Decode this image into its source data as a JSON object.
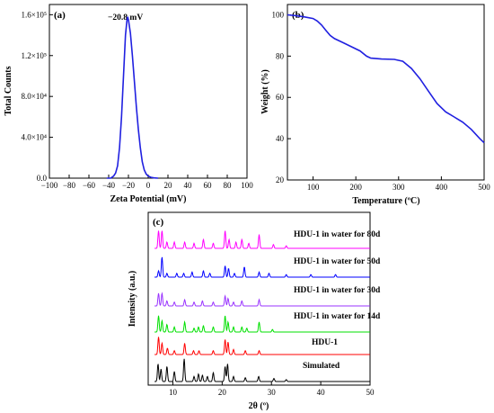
{
  "chart_data": [
    {
      "type": "line",
      "panel_label": "(a)",
      "xlabel": "Zeta Potential (mV)",
      "ylabel": "Total Counts",
      "xlim": [
        -100,
        100
      ],
      "ylim": [
        0,
        170000
      ],
      "xticks": [
        -100,
        -80,
        -60,
        -40,
        -20,
        0,
        20,
        40,
        60,
        80,
        100
      ],
      "yticks": [
        0,
        40000,
        80000,
        120000,
        160000
      ],
      "ytick_labels": [
        "0.0",
        "4.0×10⁴",
        "8.0×10⁴",
        "1.2×10⁵",
        "1.6×10⁵"
      ],
      "annotation": "−20.8 mV",
      "color": "#2020e0",
      "series": [
        {
          "x": [
            -42,
            -38,
            -35,
            -33,
            -31,
            -29,
            -27,
            -25,
            -23,
            -21.5,
            -20.8,
            -20,
            -18,
            -16,
            -14,
            -12,
            -10,
            -8,
            -6,
            -4,
            -2,
            0,
            3,
            6,
            10
          ],
          "y": [
            0,
            0,
            2000,
            5000,
            12000,
            30000,
            60000,
            100000,
            140000,
            155000,
            158000,
            155000,
            142000,
            120000,
            95000,
            70000,
            48000,
            30000,
            16000,
            8000,
            4000,
            2000,
            800,
            300,
            0
          ]
        }
      ]
    },
    {
      "type": "line",
      "panel_label": "(b)",
      "xlabel": "Temperature (ºC)",
      "ylabel": "Weight (%)",
      "xlim": [
        40,
        500
      ],
      "ylim": [
        20,
        105
      ],
      "xticks": [
        100,
        200,
        300,
        400,
        500
      ],
      "yticks": [
        20,
        40,
        60,
        80,
        100
      ],
      "color": "#2020e0",
      "series": [
        {
          "x": [
            40,
            60,
            80,
            100,
            110,
            120,
            130,
            140,
            150,
            170,
            190,
            210,
            225,
            235,
            260,
            290,
            310,
            330,
            350,
            370,
            390,
            410,
            430,
            450,
            470,
            490,
            500
          ],
          "y": [
            100,
            99.6,
            99,
            98.2,
            97,
            95,
            92.5,
            90,
            88.5,
            86.5,
            84.5,
            82.5,
            80,
            79,
            78.6,
            78.4,
            77.5,
            74,
            69,
            63,
            57,
            53,
            50.5,
            48,
            44.5,
            40,
            38
          ]
        }
      ]
    },
    {
      "type": "line",
      "panel_label": "(c)",
      "xlabel": "2θ (º)",
      "ylabel": "Intensity (a.u.)",
      "xlim": [
        5,
        50
      ],
      "xticks": [
        10,
        20,
        30,
        40,
        50
      ],
      "series": [
        {
          "name": "Simulated",
          "color": "#000000",
          "peaks": [
            [
              7.0,
              14
            ],
            [
              7.6,
              10
            ],
            [
              8.8,
              12
            ],
            [
              10.3,
              8
            ],
            [
              12.3,
              18
            ],
            [
              14.3,
              4
            ],
            [
              15.2,
              6
            ],
            [
              16.0,
              5
            ],
            [
              17.0,
              4
            ],
            [
              18.2,
              7
            ],
            [
              20.6,
              12
            ],
            [
              21.1,
              14
            ],
            [
              22.3,
              4
            ],
            [
              24.7,
              3
            ],
            [
              27.4,
              4
            ],
            [
              30.5,
              2.5
            ],
            [
              33.0,
              1.5
            ]
          ]
        },
        {
          "name": "HDU-1",
          "color": "#ff0000",
          "peaks": [
            [
              7.1,
              14
            ],
            [
              7.8,
              9
            ],
            [
              8.9,
              5
            ],
            [
              10.3,
              3
            ],
            [
              12.4,
              9
            ],
            [
              14.2,
              3
            ],
            [
              15.3,
              3
            ],
            [
              18.2,
              3
            ],
            [
              20.6,
              12
            ],
            [
              21.2,
              10
            ],
            [
              22.3,
              4
            ],
            [
              24.7,
              3
            ],
            [
              27.5,
              3
            ]
          ]
        },
        {
          "name": "HDU-1 in water for 14d",
          "color": "#00e000",
          "peaks": [
            [
              7.1,
              13
            ],
            [
              7.8,
              9
            ],
            [
              8.8,
              6
            ],
            [
              10.3,
              4
            ],
            [
              12.4,
              8
            ],
            [
              14.3,
              3
            ],
            [
              15.2,
              4
            ],
            [
              16.2,
              5
            ],
            [
              18.2,
              4
            ],
            [
              20.6,
              13
            ],
            [
              21.2,
              8
            ],
            [
              22.3,
              4
            ],
            [
              24.0,
              4
            ],
            [
              25.0,
              3
            ],
            [
              27.5,
              8
            ],
            [
              30.2,
              2
            ]
          ]
        },
        {
          "name": "HDU-1 in water for 30d",
          "color": "#9933ff",
          "peaks": [
            [
              7.1,
              10
            ],
            [
              7.8,
              10
            ],
            [
              8.8,
              4
            ],
            [
              10.3,
              3
            ],
            [
              12.4,
              5
            ],
            [
              14.3,
              3
            ],
            [
              16.0,
              4
            ],
            [
              18.2,
              3
            ],
            [
              20.6,
              8
            ],
            [
              21.2,
              6
            ],
            [
              22.3,
              3
            ],
            [
              24.0,
              4
            ],
            [
              27.5,
              5
            ]
          ]
        },
        {
          "name": "HDU-1 in water for 50d",
          "color": "#0000ff",
          "peaks": [
            [
              7.1,
              5
            ],
            [
              7.8,
              16
            ],
            [
              8.8,
              3
            ],
            [
              10.8,
              3
            ],
            [
              12.2,
              3
            ],
            [
              13.9,
              4
            ],
            [
              16.2,
              5
            ],
            [
              17.5,
              3
            ],
            [
              20.6,
              9
            ],
            [
              21.3,
              7
            ],
            [
              22.5,
              3
            ],
            [
              24.5,
              8
            ],
            [
              27.5,
              4
            ],
            [
              29.5,
              3
            ],
            [
              33.0,
              2
            ],
            [
              38.0,
              2
            ],
            [
              43.0,
              2
            ]
          ]
        },
        {
          "name": "HDU-1 in water for 80d",
          "color": "#ff00ff",
          "peaks": [
            [
              7.1,
              14
            ],
            [
              7.8,
              14
            ],
            [
              8.8,
              5
            ],
            [
              10.3,
              5
            ],
            [
              12.4,
              5
            ],
            [
              14.3,
              4
            ],
            [
              16.2,
              7
            ],
            [
              18.2,
              4
            ],
            [
              20.6,
              14
            ],
            [
              21.4,
              7
            ],
            [
              22.8,
              5
            ],
            [
              24.0,
              7
            ],
            [
              25.4,
              4
            ],
            [
              27.5,
              11
            ],
            [
              30.4,
              3
            ],
            [
              33.0,
              2
            ]
          ]
        }
      ]
    }
  ]
}
